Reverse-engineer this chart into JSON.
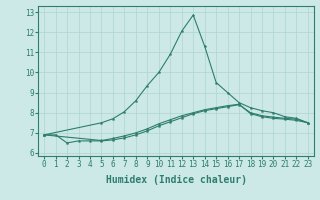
{
  "xlabel": "Humidex (Indice chaleur)",
  "x_values": [
    0,
    1,
    2,
    3,
    4,
    5,
    6,
    7,
    8,
    9,
    10,
    11,
    12,
    13,
    14,
    15,
    16,
    17,
    18,
    19,
    20,
    21,
    22,
    23
  ],
  "line1_y": [
    6.9,
    6.9,
    6.5,
    6.6,
    6.6,
    6.6,
    6.65,
    6.75,
    6.9,
    7.1,
    7.35,
    7.55,
    7.75,
    7.95,
    8.1,
    8.2,
    8.3,
    8.4,
    8.0,
    7.85,
    7.78,
    7.72,
    7.68,
    7.5
  ],
  "line2_y": [
    6.9,
    null,
    null,
    null,
    null,
    7.5,
    7.7,
    8.05,
    8.6,
    9.35,
    10.0,
    10.9,
    12.05,
    12.85,
    11.3,
    9.5,
    9.0,
    8.5,
    8.25,
    8.1,
    8.0,
    7.8,
    7.72,
    7.5
  ],
  "line3_y": [
    6.9,
    null,
    null,
    null,
    null,
    6.62,
    6.72,
    6.85,
    7.0,
    7.2,
    7.45,
    7.65,
    7.85,
    8.0,
    8.15,
    8.25,
    8.35,
    8.42,
    7.95,
    7.8,
    7.72,
    7.68,
    7.62,
    7.5
  ],
  "line_color": "#2e7d6e",
  "bg_color": "#cce9e7",
  "grid_color": "#aed4d2",
  "ylim": [
    5.85,
    13.3
  ],
  "xlim": [
    -0.5,
    23.5
  ],
  "yticks": [
    6,
    7,
    8,
    9,
    10,
    11,
    12,
    13
  ],
  "xtick_labels": [
    "0",
    "1",
    "2",
    "3",
    "4",
    "5",
    "6",
    "7",
    "8",
    "9",
    "10",
    "11",
    "12",
    "13",
    "14",
    "15",
    "16",
    "17",
    "18",
    "19",
    "20",
    "21",
    "22",
    "23"
  ],
  "tick_fontsize": 5.5,
  "label_fontsize": 7.0
}
